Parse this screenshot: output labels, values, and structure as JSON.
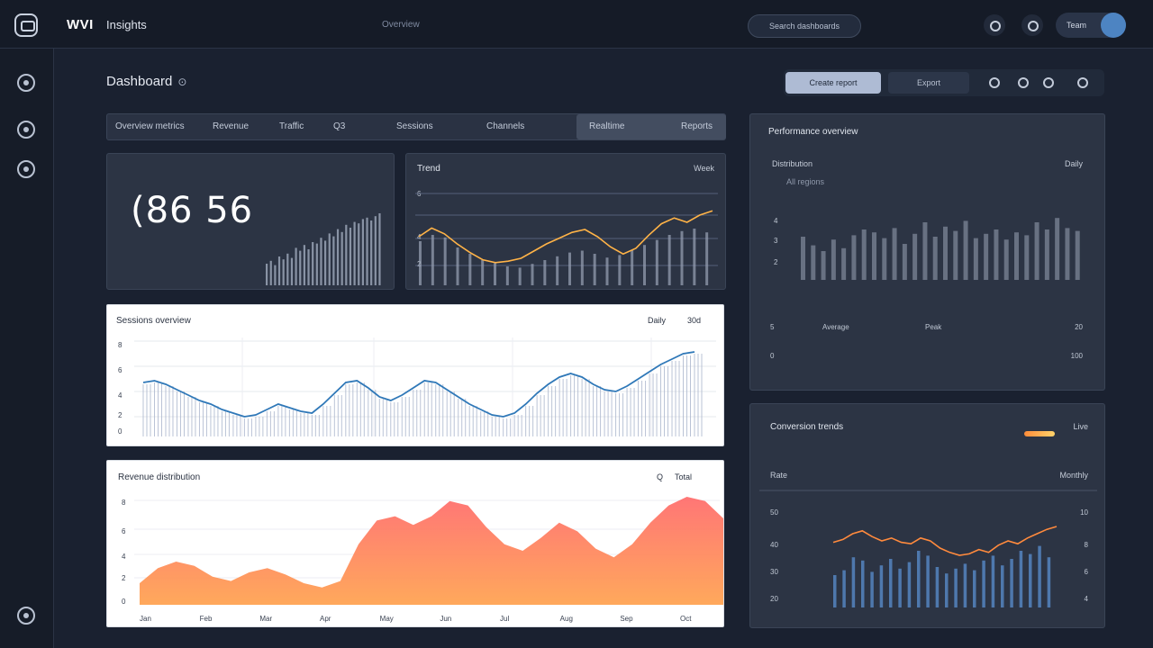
{
  "topbar": {
    "brand": "WVI",
    "brand_sub": "Insights",
    "nav_link": "Overview",
    "search_label": "Search dashboards",
    "user_label": "Team"
  },
  "header": {
    "title": "Dashboard",
    "title_mark": "⊙",
    "primary_action": "Create report",
    "secondary_action": "Export"
  },
  "tabs": [
    "Overview metrics",
    "Revenue",
    "Traffic",
    "Q3",
    "Sessions",
    "Channels",
    "Realtime",
    "Reports"
  ],
  "kpi": {
    "value": "(86 56",
    "bars": [
      30,
      34,
      28,
      40,
      36,
      44,
      38,
      52,
      48,
      56,
      50,
      60,
      58,
      66,
      62,
      72,
      68,
      78,
      74,
      84,
      80,
      88,
      86,
      92,
      94,
      90,
      96,
      100
    ]
  },
  "trend_panel": {
    "title": "Trend",
    "meta": "Week",
    "y_labels": [
      "6",
      "4",
      "2"
    ],
    "bars": [
      70,
      80,
      76,
      60,
      50,
      40,
      35,
      30,
      28,
      34,
      40,
      46,
      52,
      55,
      50,
      44,
      48,
      56,
      64,
      72,
      80,
      86,
      90,
      84
    ],
    "line": [
      60,
      72,
      64,
      50,
      38,
      28,
      24,
      26,
      30,
      40,
      50,
      58,
      66,
      70,
      60,
      46,
      36,
      44,
      62,
      78,
      86,
      80,
      90,
      96
    ]
  },
  "right_bar_panel": {
    "title": "Performance overview",
    "sub_left": "Distribution",
    "sub_right": "Daily",
    "sub_note": "All regions",
    "y_labels": [
      "4",
      "3",
      "2"
    ],
    "bottom_left": "5",
    "bottom_mid": "Average",
    "bottom_mid2": "Peak",
    "bottom_right": "20",
    "foot_left": "0",
    "foot_right": "100",
    "bars": [
      60,
      48,
      40,
      56,
      44,
      62,
      70,
      66,
      58,
      72,
      50,
      64,
      80,
      60,
      74,
      68,
      82,
      58,
      64,
      70,
      56,
      66,
      62,
      80,
      70,
      86,
      72,
      68
    ]
  },
  "line_panel": {
    "title": "Sessions overview",
    "meta_left": "Daily",
    "meta_right": "30d",
    "y_labels": [
      "8",
      "6",
      "4",
      "2",
      "0"
    ],
    "line": [
      60,
      62,
      58,
      52,
      46,
      40,
      36,
      30,
      26,
      22,
      24,
      30,
      36,
      32,
      28,
      26,
      36,
      48,
      60,
      62,
      54,
      44,
      40,
      46,
      54,
      62,
      60,
      52,
      44,
      36,
      30,
      24,
      22,
      26,
      36,
      48,
      58,
      66,
      70,
      66,
      58,
      52,
      50,
      56,
      64,
      72,
      80,
      86,
      92,
      94
    ]
  },
  "area_panel": {
    "title": "Revenue distribution",
    "meta_left": "Q",
    "meta_right": "Total",
    "y_labels": [
      "8",
      "6",
      "4",
      "2",
      "0"
    ],
    "x_labels": [
      "Jan",
      "Feb",
      "Mar",
      "Apr",
      "May",
      "Jun",
      "Jul",
      "Aug",
      "Sep",
      "Oct"
    ],
    "values": [
      20,
      34,
      40,
      36,
      26,
      22,
      30,
      34,
      28,
      20,
      16,
      22,
      56,
      78,
      82,
      74,
      82,
      96,
      92,
      72,
      56,
      50,
      62,
      76,
      68,
      52,
      44,
      56,
      76,
      92,
      100,
      96,
      80
    ]
  },
  "combo_panel": {
    "title": "Conversion trends",
    "meta_right": "Live",
    "sub_left": "Rate",
    "sub_right": "Monthly",
    "y_labels": [
      "50",
      "40",
      "30",
      "20"
    ],
    "y_right": [
      "10",
      "8",
      "6",
      "4"
    ],
    "bars": [
      40,
      46,
      62,
      58,
      44,
      52,
      60,
      48,
      56,
      70,
      64,
      50,
      42,
      48,
      54,
      46,
      58,
      64,
      52,
      60,
      70,
      66,
      76,
      62
    ],
    "line": [
      58,
      62,
      70,
      74,
      66,
      60,
      64,
      58,
      56,
      64,
      60,
      50,
      44,
      40,
      42,
      48,
      44,
      54,
      60,
      56,
      64,
      70,
      76,
      80
    ]
  },
  "colors": {
    "line_blue": "#2f78b8",
    "line_orange": "#ffb347",
    "bar_dark": "#9aa4b6",
    "bar_light": "#a9b5cc",
    "area_top": "#ff6a6a",
    "area_bottom": "#ffa14d"
  }
}
